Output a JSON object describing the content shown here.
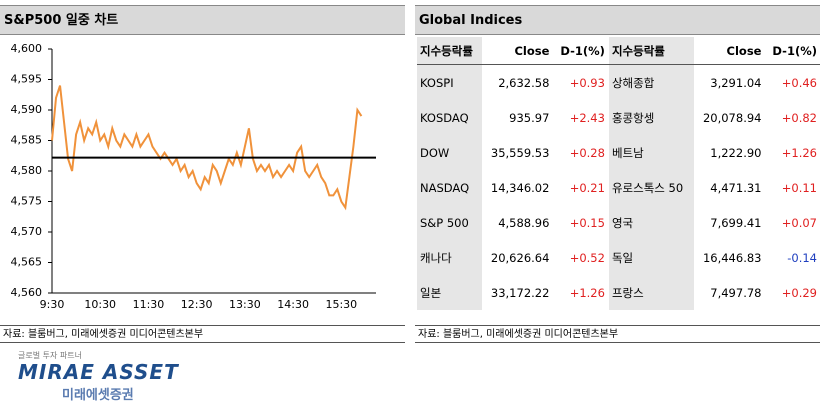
{
  "left_title": "S&P500 일중 차트",
  "right_title": "Global Indices",
  "chart_data": {
    "type": "line",
    "categories": [
      "9:30",
      null,
      null,
      null,
      null,
      null,
      null,
      null,
      null,
      null,
      null,
      null,
      "10:30",
      null,
      null,
      null,
      null,
      null,
      null,
      null,
      null,
      null,
      null,
      null,
      "11:30",
      null,
      null,
      null,
      null,
      null,
      null,
      null,
      null,
      null,
      null,
      null,
      "12:30",
      null,
      null,
      null,
      null,
      null,
      null,
      null,
      null,
      null,
      null,
      null,
      "13:30",
      null,
      null,
      null,
      null,
      null,
      null,
      null,
      null,
      null,
      null,
      null,
      "14:30",
      null,
      null,
      null,
      null,
      null,
      null,
      null,
      null,
      null,
      null,
      null,
      "15:30",
      null,
      null,
      null,
      null,
      null
    ],
    "values": [
      4585,
      4592,
      4594,
      4588,
      4582,
      4580,
      4586,
      4588,
      4585,
      4587,
      4586,
      4588,
      4585,
      4586,
      4584,
      4587,
      4585,
      4584,
      4586,
      4585,
      4584,
      4586,
      4584,
      4585,
      4586,
      4584,
      4583,
      4582,
      4583,
      4582,
      4581,
      4582,
      4580,
      4581,
      4579,
      4580,
      4578,
      4577,
      4579,
      4578,
      4581,
      4580,
      4578,
      4580,
      4582,
      4581,
      4583,
      4581,
      4584,
      4587,
      4582,
      4580,
      4581,
      4580,
      4581,
      4579,
      4580,
      4579,
      4580,
      4581,
      4580,
      4583,
      4584,
      4580,
      4579,
      4580,
      4581,
      4579,
      4578,
      4576,
      4576,
      4577,
      4575,
      4574,
      4579,
      4584,
      4590,
      4589
    ],
    "color": "#f0923b",
    "reference_line": 4582.2,
    "reference_color": "#000000",
    "ylim": [
      4560,
      4600
    ],
    "yticks": [
      {
        "value": 4560,
        "label": "4,560"
      },
      {
        "value": 4565,
        "label": "4,565"
      },
      {
        "value": 4570,
        "label": "4,570"
      },
      {
        "value": 4575,
        "label": "4,575"
      },
      {
        "value": 4580,
        "label": "4,580"
      },
      {
        "value": 4585,
        "label": "4,585"
      },
      {
        "value": 4590,
        "label": "4,590"
      },
      {
        "value": 4595,
        "label": "4,595"
      },
      {
        "value": 4600,
        "label": "4,600"
      }
    ]
  },
  "table": {
    "header": [
      "지수등락률",
      "Close",
      "D-1(%)",
      "지수등락률",
      "Close",
      "D-1(%)"
    ],
    "rows": [
      [
        "KOSPI",
        "2,632.58",
        "+0.93",
        "상해종합",
        "3,291.04",
        "+0.46"
      ],
      [
        "KOSDAQ",
        "935.97",
        "+2.43",
        "홍콩항셍",
        "20,078.94",
        "+0.82"
      ],
      [
        "DOW",
        "35,559.53",
        "+0.28",
        "베트남",
        "1,222.90",
        "+1.26"
      ],
      [
        "NASDAQ",
        "14,346.02",
        "+0.21",
        "유로스톡스 50",
        "4,471.31",
        "+0.11"
      ],
      [
        "S&P 500",
        "4,588.96",
        "+0.15",
        "영국",
        "7,699.41",
        "+0.07"
      ],
      [
        "캐나다",
        "20,626.64",
        "+0.52",
        "독일",
        "16,446.83",
        "-0.14"
      ],
      [
        "일본",
        "33,172.22",
        "+1.26",
        "프랑스",
        "7,497.78",
        "+0.29"
      ]
    ]
  },
  "left_source": "자료: 블룸버그, 미래에셋증권 미디어콘텐츠본부",
  "right_source": "자료: 블룸버그, 미래에셋증권 미디어콘텐츠본부",
  "logo": {
    "tagline": "글로벌 투자 파트너",
    "brand": "MIRAE ASSET",
    "brand_korean": "미래에셋증권"
  }
}
